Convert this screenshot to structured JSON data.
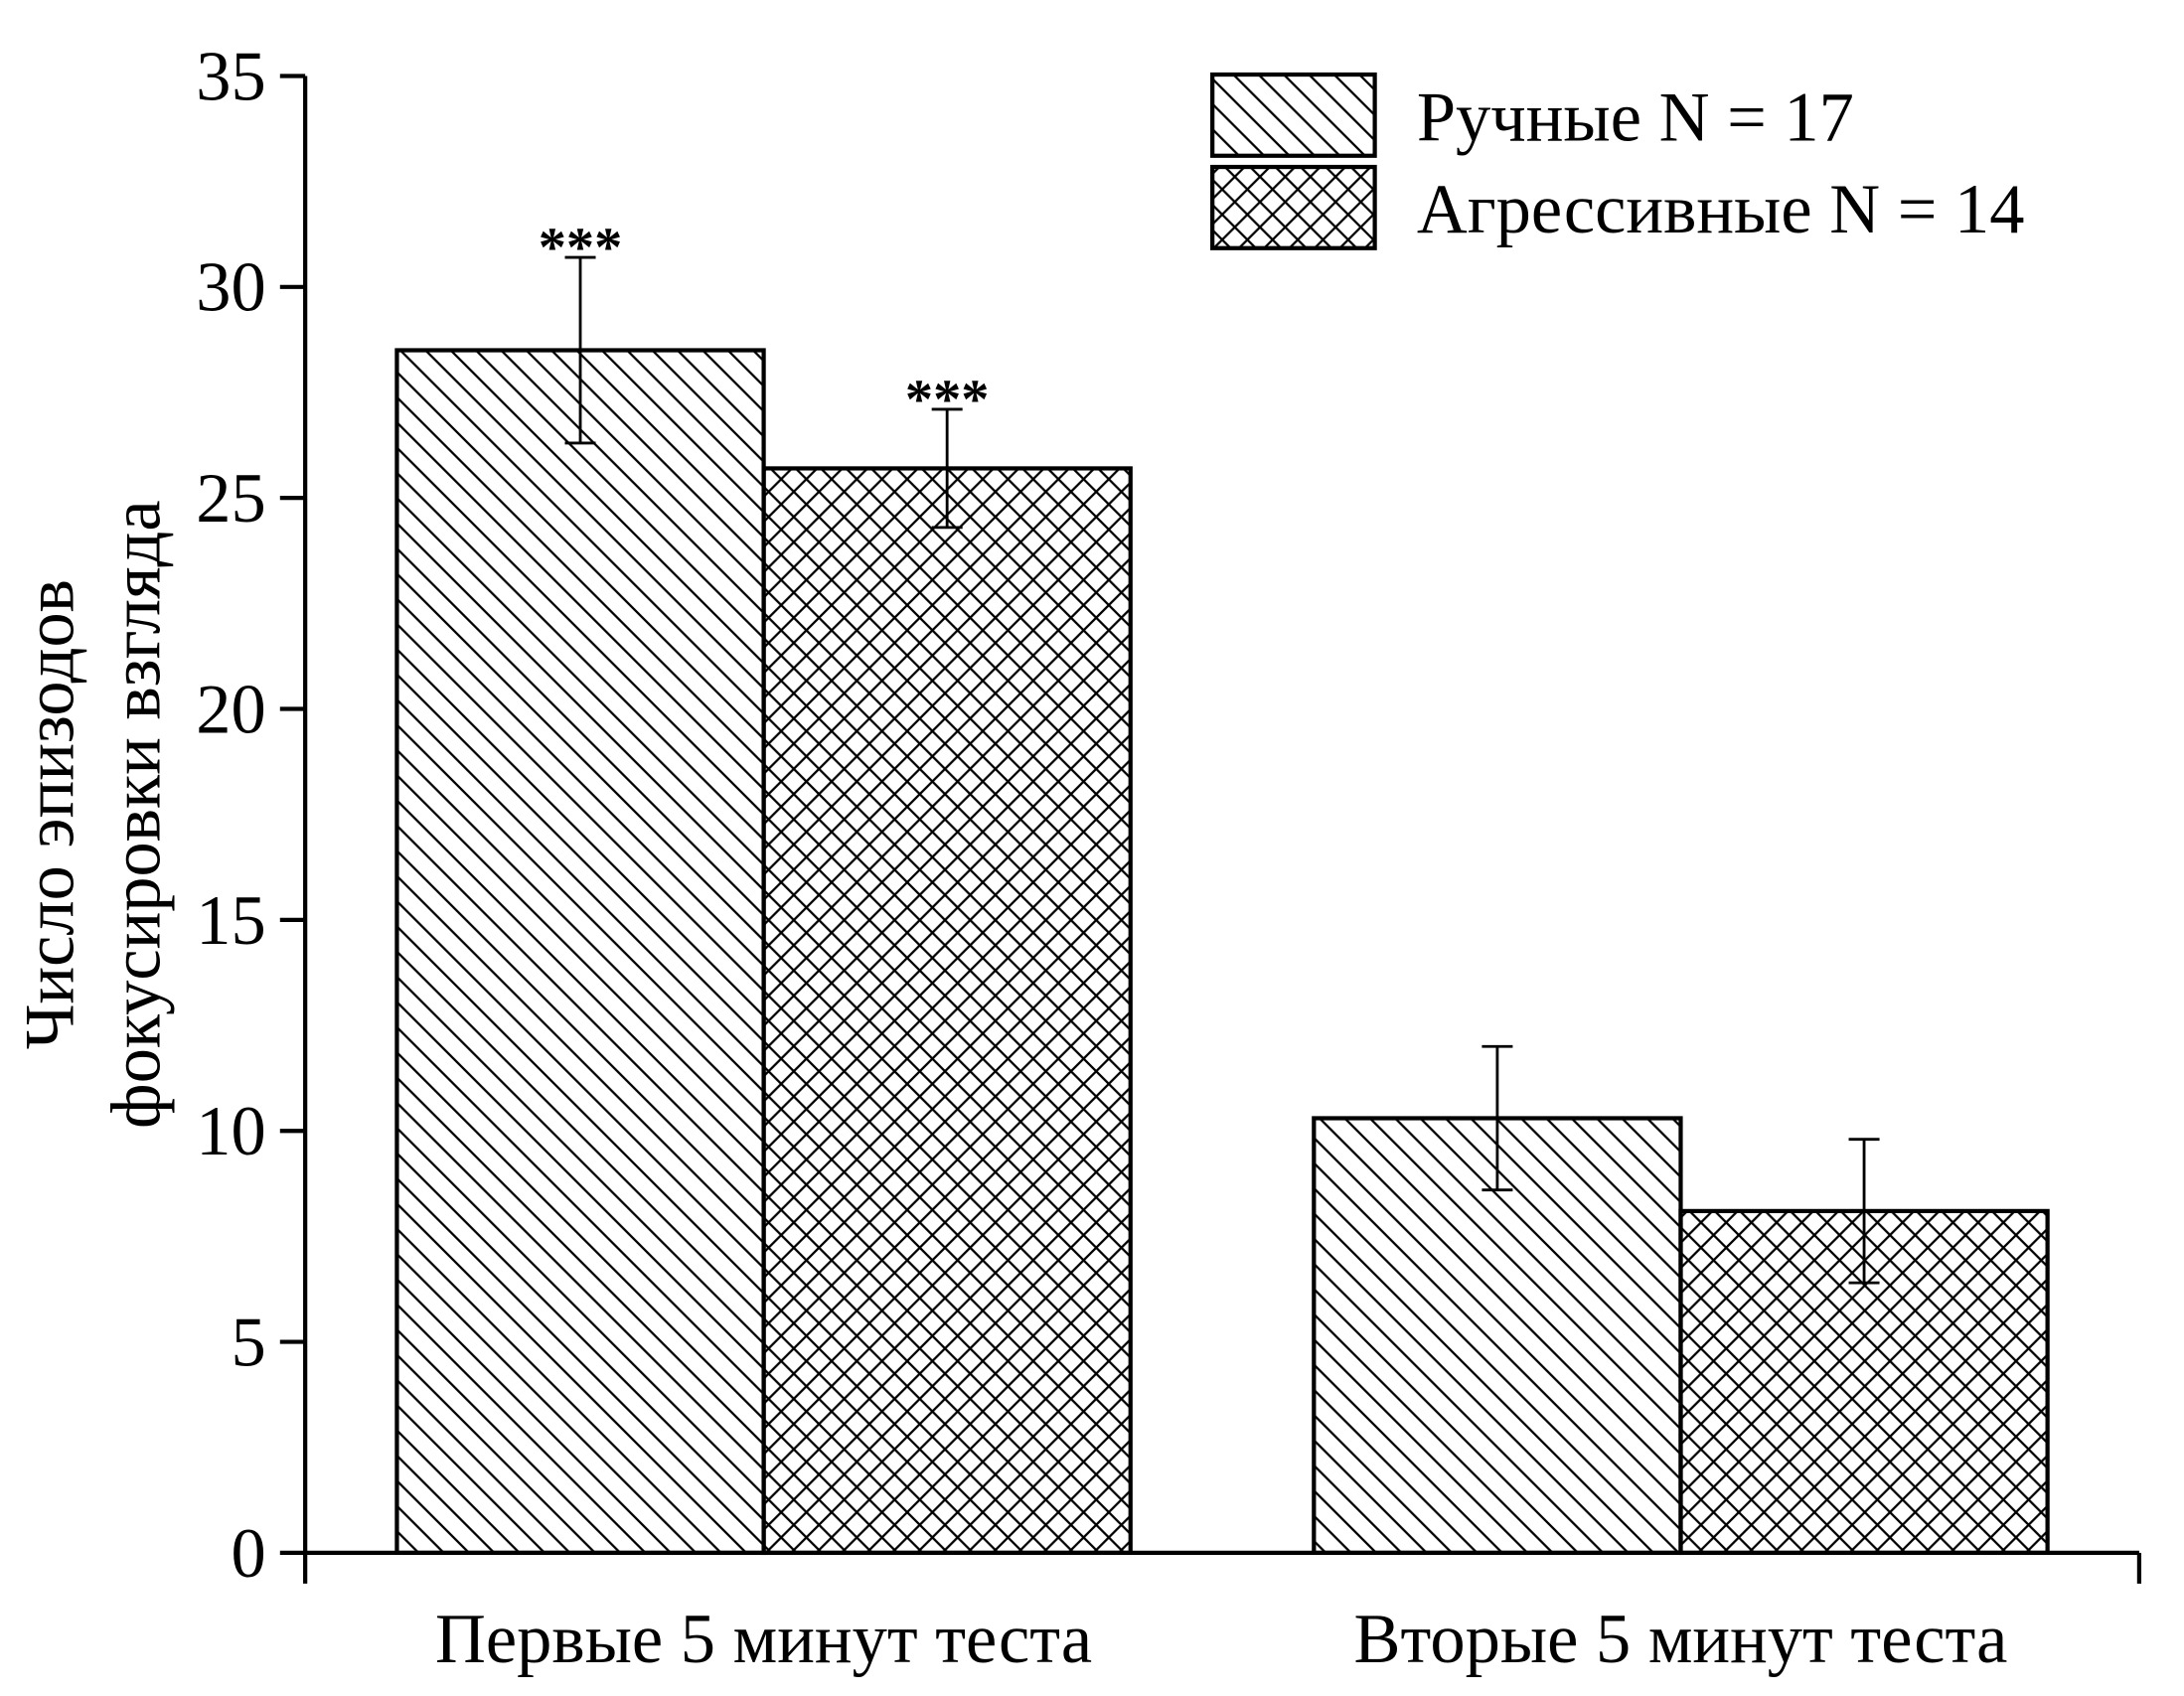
{
  "chart_data": {
    "type": "bar",
    "ylabel": [
      "Число эпизодов",
      "фокусировки взгляда"
    ],
    "categories": [
      "Первые 5 минут теста",
      "Вторые 5 минут теста"
    ],
    "series": [
      {
        "name": "Ручные N = 17",
        "color": "#000000",
        "pattern": "diagonal",
        "values": [
          28.5,
          10.3
        ],
        "errors": [
          2.2,
          1.7
        ]
      },
      {
        "name": "Агрессивные N = 14",
        "color": "#000000",
        "pattern": "crosshatch",
        "values": [
          25.7,
          8.1
        ],
        "errors": [
          1.4,
          1.7
        ]
      }
    ],
    "annotations": [
      {
        "text": "***",
        "category": 0,
        "series": 0
      },
      {
        "text": "***",
        "category": 0,
        "series": 1
      }
    ],
    "ylim": [
      0,
      35
    ],
    "yticks": [
      0,
      5,
      10,
      15,
      20,
      25,
      30,
      35
    ],
    "legend": "upper right",
    "grid": false
  }
}
